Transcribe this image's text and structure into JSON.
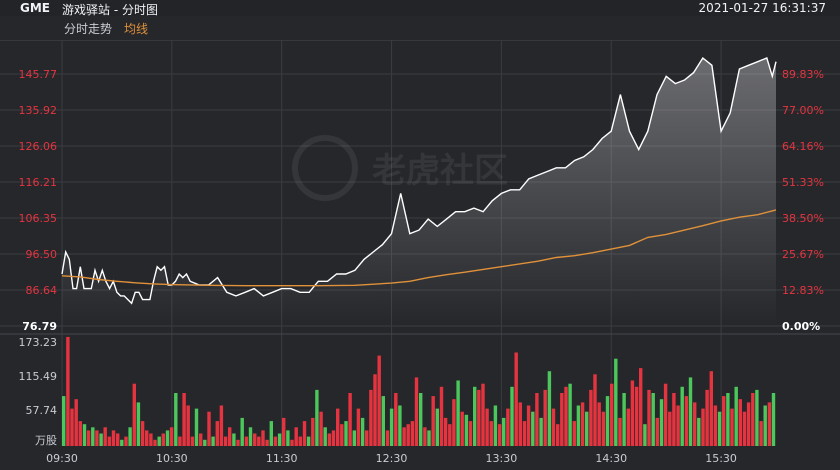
{
  "header": {
    "symbol": "GME",
    "title": "游戏驿站 - 分时图",
    "datetime": "2021-01-27 16:31:37"
  },
  "legend": {
    "intraday_label": "分时走势",
    "avg_label": "均线",
    "avg_color": "#e0913a"
  },
  "colors": {
    "up": "#e5343f",
    "down": "#4cc75b",
    "price_line": "#ffffff",
    "grid": "#3a3c41"
  },
  "watermark": "老虎社区",
  "chart_data": [
    {
      "type": "line",
      "y_labels": [
        "145.77",
        "135.92",
        "126.06",
        "116.21",
        "106.35",
        "96.50",
        "86.64",
        "76.79"
      ],
      "pct_labels": [
        "89.83%",
        "77.00%",
        "64.16%",
        "51.33%",
        "38.50%",
        "25.67%",
        "12.83%",
        "0.00%"
      ],
      "ylim": [
        76.79,
        150.0
      ],
      "x_ticks": [
        "09:30",
        "10:30",
        "11:30",
        "12:30",
        "13:30",
        "14:30",
        "15:30"
      ],
      "x_tick_minutes": [
        0,
        60,
        120,
        180,
        240,
        300,
        360
      ],
      "x_range_minutes": [
        0,
        390
      ],
      "series": [
        {
          "name": "分时走势",
          "x_minutes": [
            0,
            2,
            4,
            6,
            8,
            10,
            12,
            14,
            16,
            18,
            20,
            22,
            24,
            26,
            28,
            30,
            32,
            34,
            36,
            38,
            40,
            42,
            44,
            46,
            48,
            50,
            52,
            54,
            56,
            58,
            60,
            62,
            64,
            66,
            68,
            70,
            75,
            80,
            85,
            90,
            95,
            100,
            105,
            110,
            115,
            120,
            125,
            130,
            135,
            140,
            145,
            150,
            155,
            160,
            165,
            170,
            175,
            180,
            185,
            190,
            195,
            200,
            205,
            210,
            215,
            220,
            225,
            230,
            235,
            240,
            245,
            250,
            255,
            260,
            265,
            270,
            275,
            280,
            285,
            290,
            295,
            300,
            305,
            310,
            315,
            320,
            325,
            330,
            335,
            340,
            345,
            350,
            355,
            360,
            365,
            370,
            375,
            380,
            385,
            388,
            390
          ],
          "values": [
            91,
            97,
            95,
            87,
            87,
            93,
            87,
            87,
            87,
            92,
            89,
            92,
            89,
            87,
            89,
            86,
            85,
            85,
            84,
            83,
            86,
            86,
            84,
            84,
            84,
            89,
            93,
            92,
            93,
            88,
            88,
            89,
            91,
            90,
            91,
            89,
            88,
            88,
            90,
            86,
            85,
            86,
            87,
            85,
            86,
            87,
            87,
            86,
            86,
            89,
            89,
            91,
            91,
            92,
            95,
            97,
            99,
            102,
            113,
            102,
            103,
            106,
            104,
            106,
            108,
            108,
            109,
            108,
            111,
            113,
            114,
            114,
            117,
            118,
            119,
            120,
            120,
            122,
            123,
            125,
            128,
            130,
            140,
            130,
            125,
            130,
            140,
            145,
            143,
            144,
            146,
            150,
            148,
            130,
            135,
            147,
            148,
            149,
            150,
            145,
            149
          ]
        },
        {
          "name": "均线",
          "x_minutes": [
            0,
            10,
            20,
            30,
            40,
            50,
            60,
            80,
            100,
            120,
            140,
            160,
            180,
            190,
            200,
            210,
            220,
            240,
            260,
            270,
            280,
            290,
            300,
            310,
            320,
            330,
            340,
            350,
            360,
            370,
            380,
            390
          ],
          "values": [
            90.5,
            90.2,
            89.5,
            89.0,
            88.6,
            88.3,
            88.1,
            87.9,
            87.8,
            87.8,
            87.8,
            87.9,
            88.5,
            89,
            90,
            90.8,
            91.5,
            93,
            94.5,
            95.5,
            96,
            96.8,
            97.8,
            98.8,
            101,
            101.8,
            103,
            104.2,
            105.5,
            106.5,
            107.2,
            108.5
          ]
        }
      ]
    },
    {
      "type": "bar",
      "y_labels": [
        "173.23",
        "115.49",
        "57.74",
        "万股"
      ],
      "ylim": [
        0,
        173.23
      ],
      "x_range_minutes": [
        0,
        390
      ],
      "values": [
        80,
        175,
        60,
        75,
        40,
        35,
        25,
        30,
        25,
        20,
        30,
        15,
        25,
        20,
        10,
        15,
        30,
        100,
        70,
        40,
        25,
        20,
        10,
        15,
        20,
        25,
        30,
        85,
        15,
        85,
        65,
        15,
        60,
        20,
        10,
        55,
        15,
        40,
        65,
        15,
        30,
        20,
        10,
        45,
        15,
        30,
        20,
        15,
        25,
        10,
        40,
        15,
        20,
        45,
        25,
        10,
        30,
        15,
        40,
        15,
        45,
        90,
        55,
        30,
        20,
        25,
        60,
        35,
        40,
        85,
        25,
        60,
        45,
        25,
        90,
        115,
        145,
        80,
        25,
        60,
        85,
        65,
        30,
        35,
        40,
        110,
        85,
        30,
        25,
        80,
        60,
        95,
        45,
        35,
        75,
        105,
        55,
        50,
        40,
        95,
        90,
        100,
        60,
        40,
        65,
        35,
        45,
        60,
        95,
        150,
        70,
        40,
        65,
        55,
        85,
        45,
        90,
        120,
        60,
        35,
        85,
        95,
        100,
        40,
        65,
        70,
        55,
        90,
        115,
        70,
        55,
        80,
        100,
        140,
        45,
        85,
        60,
        105,
        95,
        125,
        35,
        90,
        85,
        45,
        75,
        100,
        55,
        85,
        65,
        95,
        80,
        110,
        70,
        45,
        60,
        90,
        120,
        65,
        55,
        80,
        85,
        60,
        95,
        75,
        55,
        70,
        85,
        90,
        40,
        65,
        70,
        85
      ],
      "colors_pattern": "alternating_up_down"
    }
  ]
}
